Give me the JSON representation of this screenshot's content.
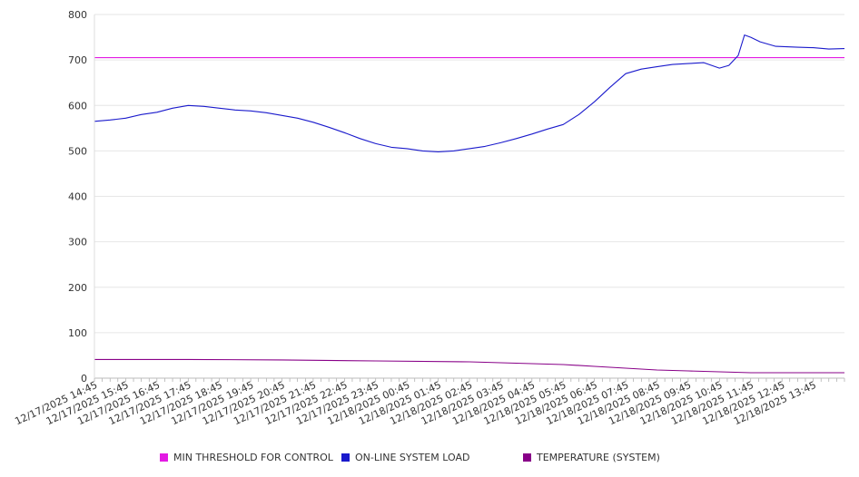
{
  "chart_data": {
    "type": "line",
    "title": "",
    "xlabel": "",
    "ylabel": "",
    "ylim": [
      0,
      800
    ],
    "yticks": [
      "0",
      "100",
      "200",
      "300",
      "400",
      "500",
      "600",
      "700",
      "800"
    ],
    "grid": true,
    "legend_position": "bottom",
    "x_labels": [
      "12/17/2025 14:45",
      "12/17/2025 15:45",
      "12/17/2025 16:45",
      "12/17/2025 17:45",
      "12/17/2025 18:45",
      "12/17/2025 19:45",
      "12/17/2025 20:45",
      "12/17/2025 21:45",
      "12/17/2025 22:45",
      "12/17/2025 23:45",
      "12/18/2025 00:45",
      "12/18/2025 01:45",
      "12/18/2025 02:45",
      "12/18/2025 03:45",
      "12/18/2025 04:45",
      "12/18/2025 05:45",
      "12/18/2025 06:45",
      "12/18/2025 07:45",
      "12/18/2025 08:45",
      "12/18/2025 09:45",
      "12/18/2025 10:45",
      "12/18/2025 11:45",
      "12/18/2025 12:45",
      "12/18/2025 13:45"
    ],
    "x_range_hours": [
      0,
      24
    ],
    "series": [
      {
        "name": "MIN THRESHOLD FOR CONTROL",
        "color": "#e31ae3",
        "points": [
          [
            0,
            705
          ],
          [
            24,
            705
          ]
        ]
      },
      {
        "name": "ON-LINE SYSTEM LOAD",
        "color": "#1a1acc",
        "points": [
          [
            0,
            565
          ],
          [
            0.5,
            568
          ],
          [
            1,
            572
          ],
          [
            1.5,
            580
          ],
          [
            2,
            585
          ],
          [
            2.5,
            594
          ],
          [
            3,
            600
          ],
          [
            3.5,
            598
          ],
          [
            4,
            594
          ],
          [
            4.5,
            590
          ],
          [
            5,
            588
          ],
          [
            5.5,
            584
          ],
          [
            6,
            578
          ],
          [
            6.5,
            572
          ],
          [
            7,
            563
          ],
          [
            7.5,
            552
          ],
          [
            8,
            540
          ],
          [
            8.5,
            527
          ],
          [
            9,
            516
          ],
          [
            9.5,
            508
          ],
          [
            10,
            505
          ],
          [
            10.5,
            500
          ],
          [
            11,
            498
          ],
          [
            11.5,
            500
          ],
          [
            12,
            505
          ],
          [
            12.5,
            510
          ],
          [
            13,
            518
          ],
          [
            13.5,
            527
          ],
          [
            14,
            537
          ],
          [
            14.5,
            548
          ],
          [
            15,
            558
          ],
          [
            15.5,
            580
          ],
          [
            16,
            608
          ],
          [
            16.5,
            640
          ],
          [
            17,
            670
          ],
          [
            17.5,
            680
          ],
          [
            18,
            685
          ],
          [
            18.5,
            690
          ],
          [
            19,
            692
          ],
          [
            19.5,
            694
          ],
          [
            20,
            682
          ],
          [
            20.3,
            688
          ],
          [
            20.6,
            710
          ],
          [
            20.8,
            755
          ],
          [
            21,
            750
          ],
          [
            21.3,
            740
          ],
          [
            21.8,
            730
          ],
          [
            22.5,
            728
          ],
          [
            23,
            727
          ],
          [
            23.5,
            724
          ],
          [
            24,
            725
          ]
        ]
      },
      {
        "name": "TEMPERATURE (SYSTEM)",
        "color": "#880088",
        "points": [
          [
            0,
            41
          ],
          [
            3,
            41
          ],
          [
            6,
            40
          ],
          [
            9,
            38
          ],
          [
            12,
            36
          ],
          [
            14,
            32
          ],
          [
            15,
            30
          ],
          [
            16,
            26
          ],
          [
            17,
            22
          ],
          [
            18,
            18
          ],
          [
            19,
            16
          ],
          [
            20,
            14
          ],
          [
            21,
            12
          ],
          [
            24,
            12
          ]
        ]
      }
    ]
  }
}
